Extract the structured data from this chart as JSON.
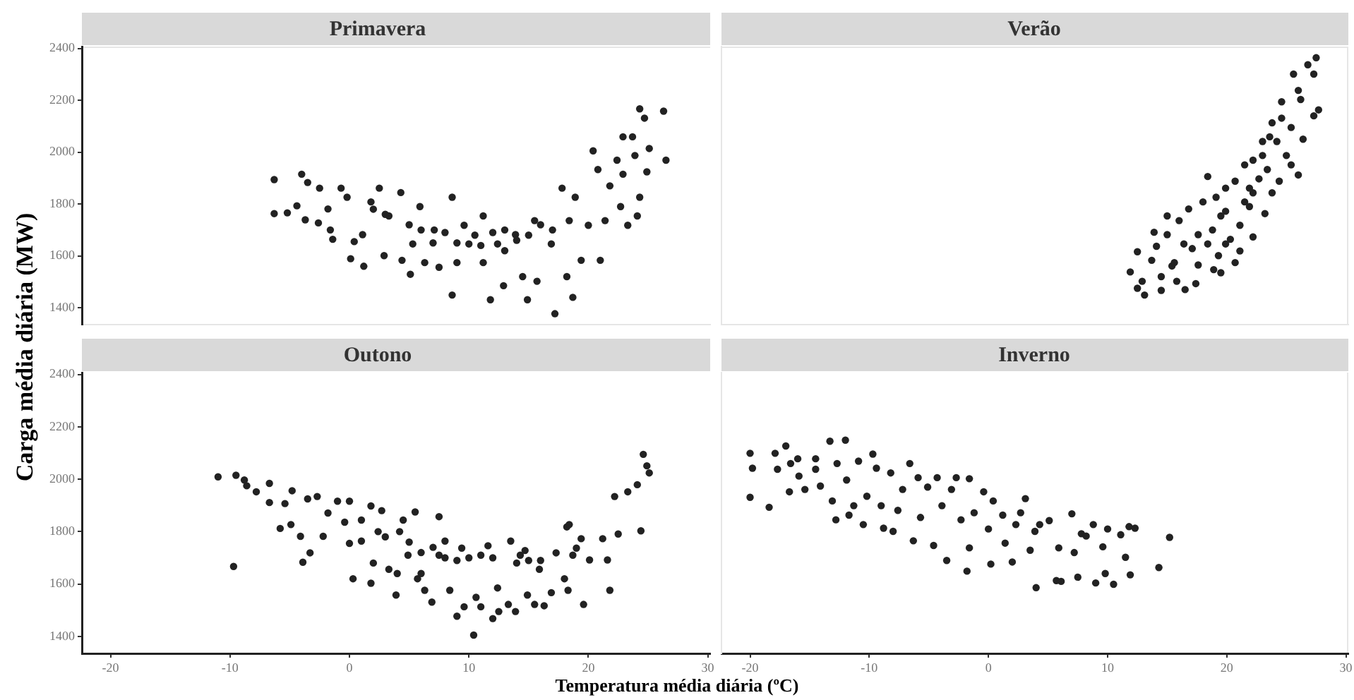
{
  "chart_data": [
    {
      "type": "scatter",
      "title": "Primavera",
      "ylabel": "Carga média diária (MW)",
      "marker": "circle",
      "color": "#222222",
      "tick_labels": "y",
      "xlim": [
        -22.4,
        30.2
      ],
      "ylim": [
        1335,
        2407
      ],
      "xticks": [
        -20,
        -10,
        0,
        10,
        20,
        30
      ],
      "yticks": [
        1400,
        1600,
        1800,
        2000,
        2200,
        2400
      ],
      "x": [
        -6.3,
        -6.3,
        -5.2,
        -4.4,
        -4.0,
        -3.7,
        -3.5,
        -2.5,
        -2.6,
        -1.8,
        -1.6,
        -1.4,
        -0.7,
        -0.2,
        0.1,
        1.2,
        0.4,
        1.1,
        1.8,
        2.5,
        2.9,
        3.3,
        4.3,
        4.4,
        5.1,
        5.3,
        5.9,
        6.3,
        7.1,
        7.5,
        8.6,
        8.6,
        9.0,
        9.6,
        10.0,
        11.2,
        11.2,
        11.8,
        12.4,
        12.9,
        13.9,
        14.5,
        14.9,
        15.5,
        15.7,
        17.2,
        16.9,
        17.8,
        18.2,
        18.4,
        18.7,
        18.9,
        19.4,
        20.0,
        20.4,
        20.8,
        21.0,
        21.4,
        21.8,
        22.4,
        22.7,
        22.9,
        22.9,
        23.3,
        23.7,
        23.9,
        24.3,
        24.3,
        24.7,
        24.9,
        25.1,
        24.1,
        26.3,
        26.5,
        12.0,
        13.0,
        14.0,
        10.5,
        9.0,
        7.0,
        6.0,
        15.0,
        16.0,
        17.0,
        8.0,
        11.0,
        13.0,
        5.0,
        3.0,
        2.0
      ],
      "values": [
        1894,
        1763,
        1766,
        1793,
        1915,
        1739,
        1883,
        1861,
        1727,
        1781,
        1700,
        1664,
        1861,
        1826,
        1589,
        1560,
        1655,
        1682,
        1808,
        1861,
        1601,
        1754,
        1844,
        1583,
        1529,
        1646,
        1790,
        1574,
        1700,
        1556,
        1826,
        1449,
        1574,
        1718,
        1646,
        1754,
        1574,
        1431,
        1646,
        1485,
        1682,
        1520,
        1431,
        1736,
        1502,
        1377,
        1646,
        1861,
        1520,
        1736,
        1440,
        1826,
        1583,
        1718,
        2005,
        1933,
        1583,
        1736,
        1870,
        1969,
        1790,
        2059,
        1915,
        1718,
        2059,
        1987,
        1826,
        2167,
        2131,
        1924,
        2014,
        1754,
        2158,
        1969,
        1690,
        1700,
        1660,
        1680,
        1650,
        1650,
        1700,
        1680,
        1720,
        1700,
        1690,
        1640,
        1620,
        1720,
        1760,
        1780
      ]
    },
    {
      "type": "scatter",
      "title": "Verão",
      "marker": "circle",
      "color": "#222222",
      "tick_labels": false,
      "xlim": [
        -22.4,
        30.2
      ],
      "ylim": [
        1335,
        2407
      ],
      "xticks": [
        -20,
        -10,
        0,
        10,
        20,
        30
      ],
      "yticks": [
        1400,
        1600,
        1800,
        2000,
        2200,
        2400
      ],
      "x": [
        27.5,
        26.8,
        25.6,
        27.3,
        27.7,
        27.3,
        26.0,
        24.6,
        26.4,
        23.8,
        23.0,
        24.2,
        25.0,
        26.0,
        22.2,
        21.5,
        23.4,
        24.4,
        20.7,
        19.9,
        22.2,
        23.8,
        18.4,
        19.1,
        21.5,
        23.2,
        18.0,
        19.9,
        16.8,
        16.0,
        21.1,
        15.0,
        18.8,
        17.6,
        15.0,
        13.9,
        19.9,
        22.2,
        18.4,
        16.4,
        14.1,
        12.5,
        17.1,
        19.3,
        21.1,
        20.7,
        18.9,
        17.6,
        15.6,
        13.7,
        11.9,
        12.9,
        14.5,
        15.4,
        15.8,
        17.4,
        16.5,
        13.1,
        14.5,
        12.5,
        19.5,
        20.3,
        21.9,
        22.7,
        25.4,
        24.6,
        23.6,
        21.9,
        19.5,
        23.0,
        26.2,
        25.4
      ],
      "values": [
        2364,
        2337,
        2301,
        2301,
        2163,
        2140,
        2238,
        2194,
        2050,
        2113,
        2041,
        2041,
        1987,
        1912,
        1969,
        1951,
        1933,
        1888,
        1888,
        1861,
        1843,
        1843,
        1906,
        1826,
        1808,
        1763,
        1808,
        1772,
        1781,
        1736,
        1718,
        1754,
        1700,
        1682,
        1682,
        1691,
        1646,
        1673,
        1646,
        1646,
        1637,
        1616,
        1628,
        1601,
        1619,
        1574,
        1547,
        1565,
        1574,
        1583,
        1538,
        1502,
        1520,
        1561,
        1502,
        1493,
        1470,
        1449,
        1467,
        1475,
        1535,
        1664,
        1790,
        1897,
        2095,
        2131,
        2059,
        1861,
        1754,
        1987,
        2203,
        1951
      ]
    },
    {
      "type": "scatter",
      "title": "Outono",
      "xlabel": "Temperatura média diária (ºC)",
      "marker": "circle",
      "color": "#222222",
      "xlim": [
        -22.4,
        30.2
      ],
      "ylim": [
        1335,
        2407
      ],
      "xticks": [
        -20,
        -10,
        0,
        10,
        20,
        30
      ],
      "yticks": [
        1400,
        1600,
        1800,
        2000,
        2200,
        2400
      ],
      "x": [
        -11.0,
        -9.5,
        -9.7,
        -8.8,
        -8.6,
        -7.8,
        -6.7,
        -6.7,
        -5.8,
        -5.4,
        -4.9,
        -4.8,
        -4.1,
        -3.9,
        -3.5,
        -3.3,
        -2.7,
        -2.2,
        -1.8,
        -1.0,
        -0.4,
        0.0,
        0.0,
        0.3,
        1.0,
        1.0,
        1.8,
        1.8,
        2.4,
        2.7,
        3.3,
        3.9,
        4.2,
        4.5,
        4.9,
        5.5,
        5.7,
        6.3,
        6.9,
        7.5,
        7.5,
        8.0,
        8.4,
        9.0,
        9.4,
        9.6,
        10.4,
        10.6,
        11.0,
        11.0,
        11.6,
        12.0,
        12.4,
        12.5,
        13.3,
        13.5,
        13.9,
        14.3,
        14.7,
        14.9,
        15.5,
        15.9,
        16.3,
        16.9,
        17.3,
        18.0,
        18.2,
        18.4,
        18.3,
        18.7,
        19.0,
        19.4,
        19.6,
        20.1,
        21.2,
        21.6,
        21.8,
        22.2,
        22.5,
        23.3,
        24.1,
        24.4,
        24.6,
        24.9,
        25.1,
        3.0,
        5.0,
        6.0,
        7.0,
        8.0,
        9.0,
        10.0,
        12.0,
        14.0,
        15.0,
        16.0,
        4.0,
        6.0,
        2.0
      ],
      "values": [
        2009,
        2015,
        1667,
        1997,
        1975,
        1952,
        1984,
        1911,
        1812,
        1907,
        1827,
        1956,
        1782,
        1683,
        1925,
        1719,
        1934,
        1782,
        1871,
        1916,
        1836,
        1916,
        1755,
        1620,
        1844,
        1764,
        1898,
        1603,
        1800,
        1880,
        1656,
        1558,
        1800,
        1844,
        1710,
        1875,
        1620,
        1576,
        1531,
        1857,
        1710,
        1764,
        1576,
        1477,
        1737,
        1513,
        1405,
        1549,
        1513,
        1710,
        1746,
        1468,
        1585,
        1495,
        1522,
        1764,
        1495,
        1710,
        1728,
        1558,
        1522,
        1656,
        1517,
        1567,
        1719,
        1620,
        1818,
        1827,
        1576,
        1710,
        1737,
        1773,
        1522,
        1692,
        1773,
        1692,
        1576,
        1934,
        1791,
        1952,
        1979,
        1803,
        2095,
        2051,
        2024,
        1780,
        1760,
        1720,
        1740,
        1700,
        1690,
        1700,
        1700,
        1680,
        1690,
        1690,
        1640,
        1640,
        1680
      ]
    },
    {
      "type": "scatter",
      "title": "Inverno",
      "marker": "circle",
      "color": "#222222",
      "tick_labels": "x",
      "xlim": [
        -22.4,
        30.2
      ],
      "ylim": [
        1335,
        2407
      ],
      "xticks": [
        -20,
        -10,
        0,
        10,
        20,
        30
      ],
      "yticks": [
        1400,
        1600,
        1800,
        2000,
        2200,
        2400
      ],
      "x": [
        -20.0,
        -19.8,
        -20.0,
        -18.4,
        -17.9,
        -17.7,
        -17.0,
        -16.7,
        -16.6,
        -16.0,
        -15.9,
        -15.4,
        -14.5,
        -14.5,
        -14.1,
        -13.3,
        -13.1,
        -12.8,
        -12.7,
        -12.0,
        -11.9,
        -11.7,
        -11.3,
        -10.9,
        -10.5,
        -10.2,
        -9.7,
        -9.4,
        -9.0,
        -8.8,
        -8.2,
        -8.0,
        -7.6,
        -7.2,
        -6.6,
        -6.3,
        -5.9,
        -5.7,
        -5.1,
        -4.6,
        -4.3,
        -3.9,
        -3.5,
        -3.1,
        -2.7,
        -2.3,
        -1.8,
        -1.6,
        -1.6,
        -1.2,
        -0.4,
        0.0,
        0.2,
        0.4,
        1.2,
        1.4,
        2.0,
        2.3,
        2.7,
        3.1,
        3.5,
        3.9,
        4.0,
        4.3,
        5.1,
        5.7,
        5.9,
        6.1,
        7.0,
        7.2,
        7.5,
        7.8,
        8.2,
        8.8,
        9.0,
        9.6,
        9.8,
        10.0,
        10.5,
        11.1,
        11.5,
        11.8,
        11.9,
        12.3,
        14.3,
        15.2
      ],
      "values": [
        2099,
        2042,
        1931,
        1893,
        2099,
        2038,
        2127,
        1952,
        2060,
        2078,
        2012,
        1961,
        2078,
        2038,
        1974,
        2145,
        1917,
        1845,
        2060,
        2149,
        1997,
        1863,
        1899,
        2069,
        1827,
        1935,
        2096,
        2042,
        1899,
        1813,
        2024,
        1801,
        1881,
        1961,
        2060,
        1765,
        2006,
        1854,
        1970,
        1747,
        2006,
        1899,
        1690,
        1961,
        2006,
        1845,
        1649,
        2002,
        1738,
        1872,
        1952,
        1810,
        1676,
        1917,
        1863,
        1756,
        1684,
        1827,
        1872,
        1926,
        1729,
        1801,
        1586,
        1827,
        1842,
        1613,
        1738,
        1610,
        1868,
        1720,
        1626,
        1792,
        1783,
        1827,
        1604,
        1742,
        1640,
        1810,
        1599,
        1788,
        1702,
        1819,
        1635,
        1813,
        1663,
        1778
      ]
    }
  ]
}
